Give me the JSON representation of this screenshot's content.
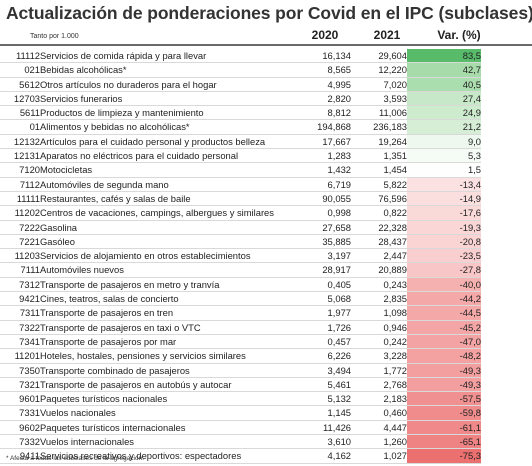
{
  "title": "Actualización de ponderaciones por Covid en el IPC (subclases)",
  "units_note": "Tanto por 1.000",
  "columns": {
    "y2020": "2020",
    "y2021": "2021",
    "var": "Var. (%)"
  },
  "rows": [
    {
      "code": "11112",
      "name": "Servicios de comida rápida y para llevar",
      "v2020": "16,134",
      "v2021": "29,604",
      "var": "83,5",
      "color": "#57bb6a"
    },
    {
      "code": "021",
      "name": "Bebidas alcohólicas*",
      "v2020": "8,565",
      "v2021": "12,220",
      "var": "42,7",
      "color": "#a7dcaa"
    },
    {
      "code": "5612",
      "name": "Otros artículos no duraderos para el hogar",
      "v2020": "4,995",
      "v2021": "7,020",
      "var": "40,5",
      "color": "#abdeae"
    },
    {
      "code": "12703",
      "name": "Servicios funerarios",
      "v2020": "2,820",
      "v2021": "3,593",
      "var": "27,4",
      "color": "#c8e9c9"
    },
    {
      "code": "5611",
      "name": "Productos de limpieza y mantenimiento",
      "v2020": "8,812",
      "v2021": "11,006",
      "var": "24,9",
      "color": "#cdebcd"
    },
    {
      "code": "01",
      "name": "Alimentos y bebidas no alcohólicas*",
      "v2020": "194,868",
      "v2021": "236,183",
      "var": "21,2",
      "color": "#d5eed5"
    },
    {
      "code": "12132",
      "name": "Artículos para el cuidado personal y productos belleza",
      "v2020": "17,667",
      "v2021": "19,264",
      "var": "9,0",
      "color": "#eef8ee"
    },
    {
      "code": "12131",
      "name": "Aparatos no eléctricos para el cuidado personal",
      "v2020": "1,283",
      "v2021": "1,351",
      "var": "5,3",
      "color": "#f5fbf5"
    },
    {
      "code": "7120",
      "name": "Motocicletas",
      "v2020": "1,432",
      "v2021": "1,454",
      "var": "1,5",
      "color": "#fdfefd"
    },
    {
      "code": "7112",
      "name": "Automóviles de segunda mano",
      "v2020": "6,719",
      "v2021": "5,822",
      "var": "-13,4",
      "color": "#fbe1e1"
    },
    {
      "code": "11111",
      "name": "Restaurantes, cafés y salas de baile",
      "v2020": "90,055",
      "v2021": "76,596",
      "var": "-14,9",
      "color": "#fbdfdf"
    },
    {
      "code": "11202",
      "name": "Centros de vacaciones, campings, albergues y similares",
      "v2020": "0,998",
      "v2021": "0,822",
      "var": "-17,6",
      "color": "#fad9d9"
    },
    {
      "code": "7222",
      "name": "Gasolina",
      "v2020": "27,658",
      "v2021": "22,328",
      "var": "-19,3",
      "color": "#fad6d6"
    },
    {
      "code": "7221",
      "name": "Gasóleo",
      "v2020": "35,885",
      "v2021": "28,437",
      "var": "-20,8",
      "color": "#fad3d3"
    },
    {
      "code": "11203",
      "name": "Servicios de alojamiento en otros establecimientos",
      "v2020": "3,197",
      "v2021": "2,447",
      "var": "-23,5",
      "color": "#f9cece"
    },
    {
      "code": "7111",
      "name": "Automóviles nuevos",
      "v2020": "28,917",
      "v2021": "20,889",
      "var": "-27,8",
      "color": "#f8c6c6"
    },
    {
      "code": "7312",
      "name": "Transporte de pasajeros en metro y tranvía",
      "v2020": "0,405",
      "v2021": "0,243",
      "var": "-40,0",
      "color": "#f5b0b0"
    },
    {
      "code": "9421",
      "name": "Cines, teatros, salas de concierto",
      "v2020": "5,068",
      "v2021": "2,835",
      "var": "-44,2",
      "color": "#f4a8a8"
    },
    {
      "code": "7311",
      "name": "Transporte de pasajeros en tren",
      "v2020": "1,977",
      "v2021": "1,098",
      "var": "-44,5",
      "color": "#f4a8a8"
    },
    {
      "code": "7322",
      "name": "Transporte de pasajeros en taxi o VTC",
      "v2020": "1,726",
      "v2021": "0,946",
      "var": "-45,2",
      "color": "#f4a6a6"
    },
    {
      "code": "7341",
      "name": "Transporte de pasajeros por mar",
      "v2020": "0,457",
      "v2021": "0,242",
      "var": "-47,0",
      "color": "#f3a3a3"
    },
    {
      "code": "11201",
      "name": "Hoteles, hostales, pensiones y servicios similares",
      "v2020": "6,226",
      "v2021": "3,228",
      "var": "-48,2",
      "color": "#f3a1a1"
    },
    {
      "code": "7350",
      "name": "Transporte combinado de pasajeros",
      "v2020": "3,494",
      "v2021": "1,772",
      "var": "-49,3",
      "color": "#f39f9f"
    },
    {
      "code": "7321",
      "name": "Transporte de pasajeros en autobús y autocar",
      "v2020": "5,461",
      "v2021": "2,768",
      "var": "-49,3",
      "color": "#f39f9f"
    },
    {
      "code": "9601",
      "name": "Paquetes turísticos nacionales",
      "v2020": "5,132",
      "v2021": "2,183",
      "var": "-57,5",
      "color": "#f19090"
    },
    {
      "code": "7331",
      "name": "Vuelos nacionales",
      "v2020": "1,145",
      "v2021": "0,460",
      "var": "-59,8",
      "color": "#f08c8c"
    },
    {
      "code": "9602",
      "name": "Paquetes turísticos internacionales",
      "v2020": "11,426",
      "v2021": "4,447",
      "var": "-61,1",
      "color": "#f08989"
    },
    {
      "code": "7332",
      "name": "Vuelos internacionales",
      "v2020": "3,610",
      "v2021": "1,260",
      "var": "-65,1",
      "color": "#ef8282"
    },
    {
      "code": "9411",
      "name": "Servicios recreativos y deportivos: espectadores",
      "v2020": "4,162",
      "v2021": "1,027",
      "var": "-75,3",
      "color": "#ec7070"
    }
  ],
  "footnote": "* Afecta a todas las subclases de la agregación."
}
